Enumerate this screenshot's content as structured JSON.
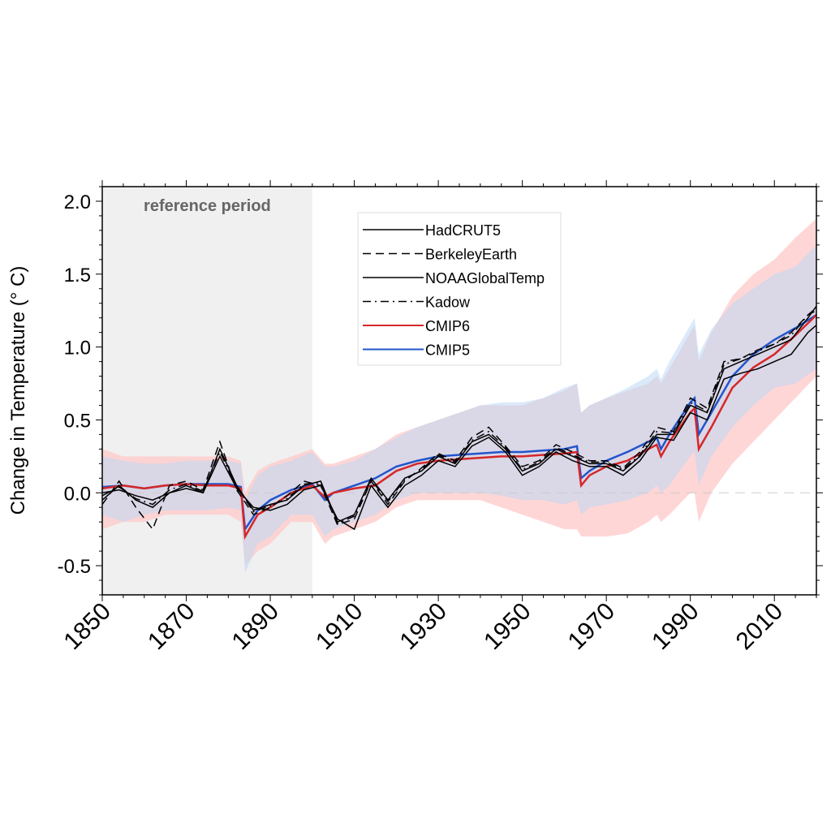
{
  "chart_data": {
    "type": "line",
    "title": "",
    "xlabel": "",
    "ylabel": "Change in Temperature (° C)",
    "xlim": [
      1850,
      2020
    ],
    "ylim": [
      -0.7,
      2.1
    ],
    "xticks": [
      1850,
      1870,
      1890,
      1910,
      1930,
      1950,
      1970,
      1990,
      2010
    ],
    "yticks": [
      -0.5,
      0.0,
      0.5,
      1.0,
      1.5,
      2.0
    ],
    "ytick_labels": [
      "-0.5",
      "0.0",
      "0.5",
      "1.0",
      "1.5",
      "2.0"
    ],
    "reference_period": {
      "label": "reference period",
      "start": 1850,
      "end": 1900,
      "color": "#f0f0f0"
    },
    "zero_line": {
      "value": 0.0,
      "style": "dashed",
      "color": "#cccccc"
    },
    "legend_placement": "top-center",
    "observations": {
      "x": [
        1850,
        1854,
        1858,
        1862,
        1866,
        1870,
        1874,
        1878,
        1882,
        1886,
        1890,
        1894,
        1898,
        1902,
        1906,
        1910,
        1914,
        1918,
        1922,
        1926,
        1930,
        1934,
        1938,
        1942,
        1946,
        1950,
        1954,
        1958,
        1962,
        1966,
        1970,
        1974,
        1978,
        1982,
        1986,
        1990,
        1994,
        1998,
        2002,
        2006,
        2010,
        2014,
        2018,
        2020
      ],
      "series": [
        {
          "name": "HadCRUT5",
          "style": "solid",
          "color": "#000000",
          "values": [
            -0.05,
            0.05,
            -0.05,
            -0.1,
            0.0,
            0.05,
            0.0,
            0.3,
            0.05,
            -0.12,
            -0.08,
            -0.05,
            0.05,
            0.08,
            -0.2,
            -0.15,
            0.1,
            -0.05,
            0.1,
            0.15,
            0.25,
            0.2,
            0.35,
            0.4,
            0.3,
            0.15,
            0.2,
            0.3,
            0.25,
            0.2,
            0.2,
            0.15,
            0.25,
            0.4,
            0.4,
            0.6,
            0.55,
            0.85,
            0.9,
            0.95,
            1.0,
            1.05,
            1.2,
            1.28
          ]
        },
        {
          "name": "BerkeleyEarth",
          "style": "dashed",
          "color": "#000000",
          "values": [
            -0.08,
            0.08,
            -0.1,
            -0.25,
            0.05,
            0.08,
            0.02,
            0.35,
            0.02,
            -0.15,
            -0.1,
            -0.02,
            0.08,
            0.05,
            -0.22,
            -0.18,
            0.08,
            -0.08,
            0.08,
            0.17,
            0.27,
            0.22,
            0.38,
            0.45,
            0.32,
            0.18,
            0.22,
            0.33,
            0.28,
            0.22,
            0.22,
            0.17,
            0.28,
            0.45,
            0.42,
            0.65,
            0.58,
            0.9,
            0.92,
            0.98,
            1.02,
            1.1,
            1.22,
            1.25
          ]
        },
        {
          "name": "NOAAGlobalTemp",
          "style": "solid",
          "color": "#000000",
          "values": [
            0.0,
            0.02,
            -0.02,
            -0.05,
            0.0,
            0.03,
            0.0,
            0.25,
            0.03,
            -0.1,
            -0.12,
            -0.08,
            0.02,
            0.05,
            -0.18,
            -0.25,
            0.05,
            -0.1,
            0.05,
            0.12,
            0.22,
            0.18,
            0.32,
            0.38,
            0.28,
            0.12,
            0.18,
            0.28,
            0.22,
            0.18,
            0.18,
            0.12,
            0.22,
            0.38,
            0.36,
            0.55,
            0.5,
            0.78,
            0.82,
            0.85,
            0.9,
            0.95,
            1.1,
            1.15
          ]
        },
        {
          "name": "Kadow",
          "style": "dashdot",
          "color": "#000000",
          "values": [
            -0.02,
            0.04,
            -0.04,
            -0.08,
            0.02,
            0.06,
            0.01,
            0.28,
            0.04,
            -0.13,
            -0.09,
            -0.04,
            0.06,
            0.07,
            -0.21,
            -0.16,
            0.09,
            -0.06,
            0.09,
            0.16,
            0.26,
            0.21,
            0.36,
            0.42,
            0.31,
            0.16,
            0.21,
            0.31,
            0.26,
            0.21,
            0.21,
            0.16,
            0.26,
            0.42,
            0.41,
            0.62,
            0.56,
            0.88,
            0.92,
            0.97,
            1.02,
            1.08,
            1.22,
            1.27
          ]
        }
      ]
    },
    "models": {
      "x": [
        1850,
        1855,
        1860,
        1865,
        1870,
        1875,
        1880,
        1883,
        1884,
        1887,
        1890,
        1895,
        1900,
        1903,
        1905,
        1910,
        1915,
        1920,
        1925,
        1930,
        1935,
        1940,
        1945,
        1950,
        1955,
        1960,
        1963,
        1964,
        1966,
        1970,
        1975,
        1980,
        1982,
        1983,
        1985,
        1990,
        1991,
        1992,
        1995,
        2000,
        2005,
        2010,
        2015,
        2020
      ],
      "series": [
        {
          "name": "CMIP6",
          "color": "#d62728",
          "band_color": "#ffcccc",
          "mean": [
            0.03,
            0.05,
            0.03,
            0.05,
            0.06,
            0.05,
            0.05,
            0.03,
            -0.3,
            -0.15,
            -0.1,
            0.0,
            0.05,
            -0.03,
            0.0,
            0.03,
            0.05,
            0.15,
            0.2,
            0.22,
            0.23,
            0.24,
            0.25,
            0.25,
            0.26,
            0.27,
            0.28,
            0.05,
            0.12,
            0.18,
            0.22,
            0.3,
            0.33,
            0.25,
            0.35,
            0.55,
            0.58,
            0.3,
            0.45,
            0.72,
            0.86,
            0.95,
            1.08,
            1.22
          ],
          "upper": [
            0.3,
            0.25,
            0.25,
            0.25,
            0.25,
            0.25,
            0.25,
            0.22,
            0.0,
            0.15,
            0.2,
            0.25,
            0.3,
            0.2,
            0.2,
            0.25,
            0.3,
            0.4,
            0.45,
            0.5,
            0.55,
            0.6,
            0.6,
            0.6,
            0.65,
            0.7,
            0.75,
            0.55,
            0.6,
            0.65,
            0.7,
            0.75,
            0.8,
            0.75,
            0.85,
            1.1,
            1.15,
            0.9,
            1.1,
            1.35,
            1.5,
            1.6,
            1.75,
            1.88
          ],
          "lower": [
            -0.25,
            -0.2,
            -0.2,
            -0.15,
            -0.15,
            -0.15,
            -0.15,
            -0.2,
            -0.5,
            -0.4,
            -0.35,
            -0.2,
            -0.2,
            -0.35,
            -0.3,
            -0.25,
            -0.2,
            -0.1,
            -0.05,
            -0.05,
            -0.05,
            -0.05,
            -0.1,
            -0.15,
            -0.2,
            -0.25,
            -0.25,
            -0.3,
            -0.3,
            -0.3,
            -0.28,
            -0.2,
            -0.15,
            -0.2,
            -0.15,
            0.0,
            0.0,
            -0.2,
            0.0,
            0.2,
            0.35,
            0.5,
            0.65,
            0.8
          ]
        },
        {
          "name": "CMIP5",
          "color": "#2255cc",
          "band_color": "#bcd8f5",
          "mean": [
            0.04,
            0.05,
            0.03,
            0.05,
            0.06,
            0.06,
            0.06,
            0.04,
            -0.25,
            -0.12,
            -0.05,
            0.02,
            0.06,
            -0.05,
            0.0,
            0.05,
            0.1,
            0.18,
            0.22,
            0.25,
            0.26,
            0.27,
            0.28,
            0.28,
            0.29,
            0.3,
            0.32,
            0.1,
            0.15,
            0.22,
            0.28,
            0.35,
            0.38,
            0.3,
            0.4,
            0.62,
            0.65,
            0.4,
            0.55,
            0.8,
            0.95,
            1.05,
            1.13,
            1.22
          ],
          "upper": [
            0.25,
            0.22,
            0.2,
            0.2,
            0.22,
            0.22,
            0.22,
            0.2,
            -0.05,
            0.12,
            0.18,
            0.22,
            0.28,
            0.18,
            0.18,
            0.22,
            0.3,
            0.38,
            0.45,
            0.5,
            0.55,
            0.6,
            0.62,
            0.62,
            0.65,
            0.72,
            0.75,
            0.55,
            0.6,
            0.65,
            0.72,
            0.8,
            0.85,
            0.78,
            0.9,
            1.15,
            1.2,
            0.95,
            1.12,
            1.3,
            1.4,
            1.5,
            1.55,
            1.7
          ],
          "lower": [
            -0.15,
            -0.2,
            -0.15,
            -0.12,
            -0.12,
            -0.12,
            -0.1,
            -0.12,
            -0.55,
            -0.35,
            -0.3,
            -0.15,
            -0.15,
            -0.3,
            -0.25,
            -0.2,
            -0.15,
            -0.05,
            0.0,
            0.0,
            0.0,
            0.0,
            -0.02,
            -0.05,
            -0.05,
            -0.08,
            -0.05,
            -0.15,
            -0.1,
            -0.08,
            -0.05,
            0.0,
            0.05,
            0.0,
            0.05,
            0.25,
            0.28,
            0.05,
            0.25,
            0.45,
            0.6,
            0.72,
            0.75,
            0.85
          ]
        }
      ]
    }
  }
}
